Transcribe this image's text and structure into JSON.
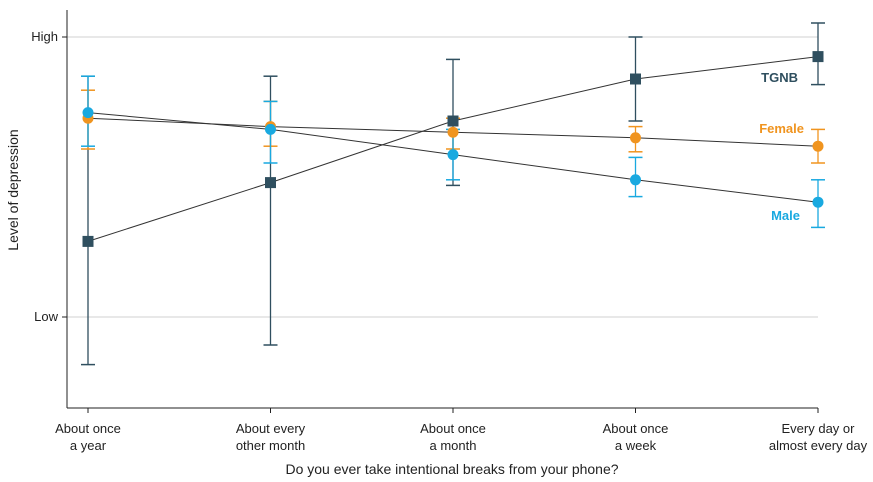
{
  "chart_data": {
    "type": "line",
    "xlabel": "Do you ever take intentional breaks from your phone?",
    "ylabel": "Level of depression",
    "categories": [
      [
        "About once",
        "a year"
      ],
      [
        "About every",
        "other month"
      ],
      [
        "About once",
        "a month"
      ],
      [
        "About once",
        "a week"
      ],
      [
        "Every day or",
        "almost every day"
      ]
    ],
    "y_ticks": [
      {
        "label": "Low",
        "value": 0
      },
      {
        "label": "High",
        "value": 1
      }
    ],
    "ylim": [
      -0.33,
      1.09
    ],
    "grid": "horizontal at ticks",
    "legend": "inline labels at right end of each series",
    "series": [
      {
        "name": "TGNB",
        "color": "#2f4f5f",
        "marker": "square",
        "values": [
          0.27,
          0.48,
          0.7,
          0.85,
          0.93
        ],
        "ci_low": [
          -0.17,
          -0.1,
          0.47,
          0.7,
          0.83
        ],
        "ci_high": [
          0.86,
          0.86,
          0.92,
          1.0,
          1.05
        ]
      },
      {
        "name": "Female",
        "color": "#f0941f",
        "marker": "circle",
        "values": [
          0.71,
          0.68,
          0.66,
          0.64,
          0.61
        ],
        "ci_low": [
          0.6,
          0.61,
          0.6,
          0.59,
          0.55
        ],
        "ci_high": [
          0.81,
          0.77,
          0.71,
          0.68,
          0.67
        ]
      },
      {
        "name": "Male",
        "color": "#19a9e0",
        "marker": "circle",
        "values": [
          0.73,
          0.67,
          0.58,
          0.49,
          0.41
        ],
        "ci_low": [
          0.61,
          0.55,
          0.49,
          0.43,
          0.32
        ],
        "ci_high": [
          0.86,
          0.77,
          0.67,
          0.57,
          0.49
        ]
      }
    ]
  }
}
